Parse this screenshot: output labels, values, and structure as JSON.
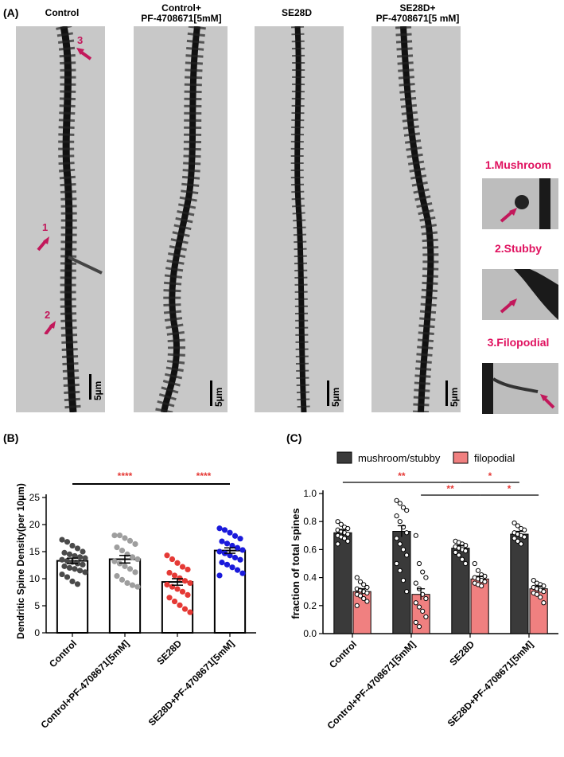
{
  "panel_a": {
    "letter": "(A)",
    "titles": [
      {
        "line1": "Control",
        "line2": ""
      },
      {
        "line1": "Control+",
        "line2": "PF-4708671[5mM]"
      },
      {
        "line1": "SE28D",
        "line2": ""
      },
      {
        "line1": "SE28D+",
        "line2": "PF-4708671[5 mM]"
      }
    ],
    "scale_label": "5µm",
    "arrow_numbers": [
      "1",
      "2",
      "3"
    ],
    "insets": [
      "1.Mushroom",
      "2.Stubby",
      "3.Filopodial"
    ],
    "colors": {
      "arrow": "#c2185b",
      "inset_text": "#e0115f"
    }
  },
  "chart_data": [
    {
      "panel": "(B)",
      "type": "bar",
      "ylabel": "Dendritic Spine Density(per 10µm)",
      "ylim": [
        0,
        25
      ],
      "yticks": [
        0,
        5,
        10,
        15,
        20,
        25
      ],
      "categories": [
        "Control",
        "Control+PF-4708671[5mM]",
        "SE28D",
        "SE28D+PF-4708671[5mM]"
      ],
      "values": [
        13.3,
        13.6,
        9.4,
        15.2
      ],
      "sem": [
        0.5,
        0.7,
        0.6,
        0.5
      ],
      "point_colors": [
        "#4a4a4a",
        "#9e9e9e",
        "#e53935",
        "#1a1adb"
      ],
      "points": [
        [
          17.2,
          16.8,
          16.1,
          15.6,
          15.0,
          14.8,
          14.5,
          14.2,
          14.0,
          13.8,
          13.5,
          13.3,
          13.1,
          12.8,
          12.6,
          12.3,
          12.0,
          11.8,
          11.5,
          11.2,
          10.8,
          10.3,
          9.5,
          9.0
        ],
        [
          18.0,
          18.0,
          17.5,
          17.0,
          16.4,
          15.8,
          15.2,
          14.5,
          14.0,
          13.6,
          13.2,
          12.8,
          12.3,
          11.8,
          11.2,
          10.5,
          9.8,
          9.2,
          8.8,
          8.5
        ],
        [
          14.3,
          13.6,
          12.9,
          12.2,
          11.7,
          11.1,
          10.6,
          10.1,
          9.6,
          9.2,
          8.9,
          8.5,
          8.1,
          7.6,
          7.0,
          6.5,
          5.8,
          5.1,
          4.4,
          3.8
        ],
        [
          19.3,
          19.0,
          18.5,
          17.9,
          17.4,
          16.9,
          16.5,
          16.1,
          15.7,
          15.3,
          15.0,
          14.7,
          14.3,
          13.9,
          13.5,
          13.0,
          12.6,
          12.1,
          11.6,
          11.0,
          10.6
        ]
      ],
      "significance": [
        {
          "from": 0,
          "to": 2,
          "label": "****"
        },
        {
          "from": 2,
          "to": 3,
          "label": "****"
        }
      ]
    },
    {
      "panel": "(C)",
      "type": "bar",
      "ylabel": "fraction of total spines",
      "ylim": [
        0,
        1.0
      ],
      "yticks": [
        "0.0",
        "0.2",
        "0.4",
        "0.6",
        "0.8",
        "1.0"
      ],
      "categories": [
        "Control",
        "Control+PF-4708671[5mM]",
        "SE28D",
        "SE28D+PF-4708671[5mM]"
      ],
      "series": [
        {
          "name": "mushroom/stubby",
          "color": "#3a3a3a",
          "values": [
            0.72,
            0.73,
            0.61,
            0.71
          ],
          "sem": [
            0.02,
            0.04,
            0.02,
            0.02
          ],
          "points": [
            [
              0.8,
              0.78,
              0.76,
              0.75,
              0.74,
              0.73,
              0.72,
              0.71,
              0.7,
              0.69,
              0.68,
              0.66,
              0.64
            ],
            [
              0.95,
              0.93,
              0.9,
              0.88,
              0.84,
              0.8,
              0.76,
              0.72,
              0.68,
              0.64,
              0.6,
              0.56,
              0.5,
              0.45,
              0.38,
              0.3
            ]
          ],
          "points2": [
            [
              0.66,
              0.65,
              0.64,
              0.63,
              0.62,
              0.61,
              0.6,
              0.59,
              0.58,
              0.56,
              0.53,
              0.5
            ],
            [
              0.79,
              0.77,
              0.75,
              0.74,
              0.72,
              0.71,
              0.7,
              0.69,
              0.68,
              0.66,
              0.64
            ]
          ]
        },
        {
          "name": "filopodial",
          "color": "#f08080",
          "values": [
            0.3,
            0.28,
            0.39,
            0.32
          ],
          "sem": [
            0.02,
            0.04,
            0.02,
            0.02
          ],
          "points": [
            [
              0.4,
              0.37,
              0.35,
              0.33,
              0.32,
              0.31,
              0.3,
              0.29,
              0.28,
              0.27,
              0.25,
              0.23,
              0.2
            ],
            [
              0.7,
              0.5,
              0.44,
              0.4,
              0.36,
              0.32,
              0.28,
              0.25,
              0.22,
              0.19,
              0.16,
              0.12,
              0.08,
              0.05
            ]
          ],
          "points2": [
            [
              0.5,
              0.45,
              0.42,
              0.41,
              0.4,
              0.39,
              0.38,
              0.37,
              0.36,
              0.35,
              0.34
            ],
            [
              0.38,
              0.36,
              0.35,
              0.34,
              0.33,
              0.32,
              0.31,
              0.3,
              0.29,
              0.28,
              0.26,
              0.22
            ]
          ]
        }
      ],
      "legend_position": "top",
      "significance": [
        {
          "from": 0,
          "to": 2,
          "series": 0,
          "label": "**",
          "row": 0
        },
        {
          "from": 2,
          "to": 3,
          "series": 0,
          "label": "*",
          "row": 0
        },
        {
          "from": 1,
          "to": 2,
          "series": 1,
          "label": "**",
          "row": 1
        },
        {
          "from": 2,
          "to": 3,
          "series": 1,
          "label": "*",
          "row": 1
        }
      ]
    }
  ],
  "panel_b_letter": "(B)",
  "panel_c_letter": "(C)"
}
